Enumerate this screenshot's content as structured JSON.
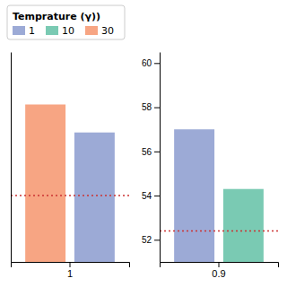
{
  "chart_data": [
    {
      "type": "bar",
      "categories": [
        "1"
      ],
      "series": [
        {
          "name": "30",
          "color": "#F4875A",
          "values": [
            55.0
          ]
        },
        {
          "name": "1",
          "color": "#7B8EC8",
          "values": [
            54.2
          ]
        }
      ],
      "hline": {
        "value": 52.4,
        "color": "#CC3333",
        "line_style": "dotted"
      },
      "ylim": [
        50.5,
        56.5
      ],
      "tick_labels": "x",
      "legend": "upper left",
      "legend_title": "Temprature (γ))",
      "legend_entries": [
        {
          "name": "1",
          "color": "#7B8EC8"
        },
        {
          "name": "10",
          "color": "#4DB89A"
        },
        {
          "name": "30",
          "color": "#F4875A"
        }
      ]
    },
    {
      "type": "bar",
      "categories": [
        "0.9"
      ],
      "series": [
        {
          "name": "1",
          "color": "#7B8EC8",
          "values": [
            57.0
          ]
        },
        {
          "name": "10",
          "color": "#4DB89A",
          "values": [
            54.3
          ]
        }
      ],
      "hline": {
        "value": 52.4,
        "color": "#CC3333",
        "line_style": "dotted"
      },
      "ylim": [
        51.0,
        60.5
      ],
      "yticks": [
        52,
        54,
        56,
        58,
        60
      ]
    }
  ]
}
